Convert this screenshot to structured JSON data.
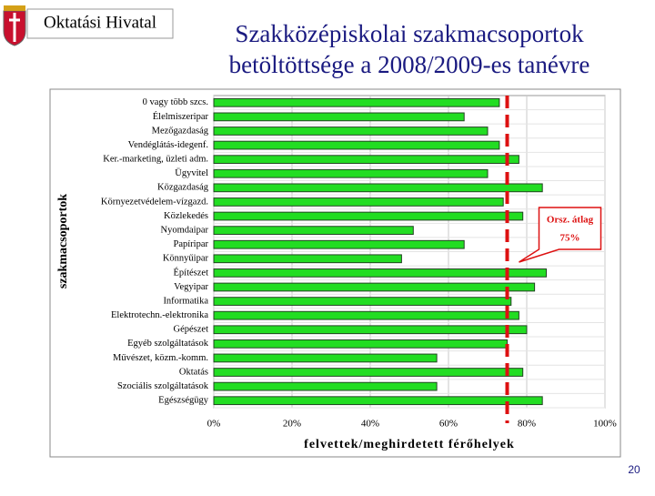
{
  "header": {
    "organization": "Oktatási Hivatal",
    "title_lines": [
      "Szakközépiskolai szakmacsoportok",
      "betöltöttsége a 2008/2009-es tanévre"
    ]
  },
  "chart_data": {
    "type": "hbar",
    "x_label": "felvettek/meghirdetett férőhelyek",
    "y_label": "szakmacsoportok",
    "categories": [
      "0 vagy több szcs.",
      "Élelmiszeripar",
      "Mezőgazdaság",
      "Vendéglátás-idegenf.",
      "Ker.-marketing, üzleti adm.",
      "Ügyvitel",
      "Közgazdaság",
      "Környezetvédelem-vízgazd.",
      "Közlekedés",
      "Nyomdaipar",
      "Papíripar",
      "Könnyűipar",
      "Építészet",
      "Vegyipar",
      "Informatika",
      "Elektrotechn.-elektronika",
      "Gépészet",
      "Egyéb szolgáltatások",
      "Művészet, közm.-komm.",
      "Oktatás",
      "Szociális szolgáltatások",
      "Egészségügy"
    ],
    "values": [
      73,
      64,
      70,
      73,
      78,
      70,
      84,
      74,
      79,
      51,
      64,
      48,
      85,
      82,
      76,
      78,
      80,
      75,
      57,
      79,
      57,
      84
    ],
    "color": "#22dd22",
    "xlim": [
      0,
      100
    ],
    "xticks": [
      {
        "value": 0,
        "label": "0%"
      },
      {
        "value": 20,
        "label": "20%"
      },
      {
        "value": 40,
        "label": "40%"
      },
      {
        "value": 60,
        "label": "60%"
      },
      {
        "value": 80,
        "label": "80%"
      },
      {
        "value": 100,
        "label": "100%"
      }
    ],
    "grid": true,
    "reference_line": {
      "name": "Orsz. átlag",
      "value": 75,
      "label": "75%",
      "color": "#dd1111"
    }
  },
  "footer": {
    "page_number": 20
  }
}
